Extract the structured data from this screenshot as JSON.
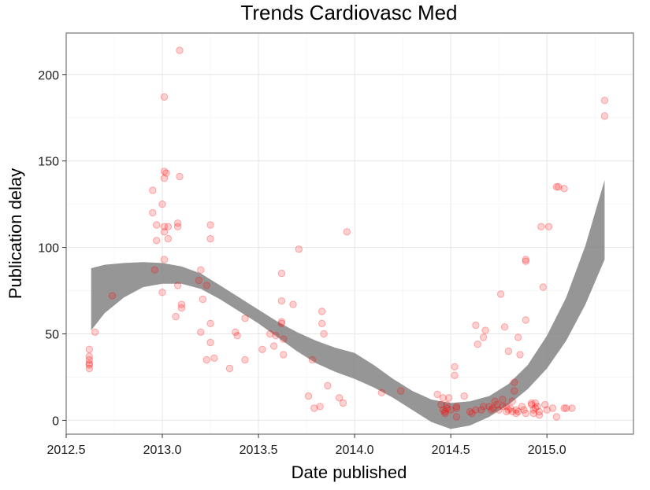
{
  "chart_data": {
    "type": "scatter",
    "title": "Trends Cardiovasc Med",
    "xlabel": "Date published",
    "ylabel": "Publication delay",
    "xlim": [
      2012.5,
      2015.45
    ],
    "ylim": [
      -8,
      224
    ],
    "x_ticks": [
      2012.5,
      2013.0,
      2013.5,
      2014.0,
      2014.5,
      2015.0
    ],
    "x_tick_labels": [
      "2012.5",
      "2013.0",
      "2013.5",
      "2014.0",
      "2014.5",
      "2015.0"
    ],
    "y_ticks": [
      0,
      50,
      100,
      150,
      200
    ],
    "y_tick_labels": [
      "0",
      "50",
      "100",
      "150",
      "200"
    ],
    "grid": true,
    "point_color": "#ff0000",
    "ribbon_color": "#7f7f7f",
    "points": [
      [
        2012.62,
        41
      ],
      [
        2012.62,
        37
      ],
      [
        2012.62,
        35
      ],
      [
        2012.62,
        33
      ],
      [
        2012.62,
        32
      ],
      [
        2012.62,
        30
      ],
      [
        2012.65,
        51
      ],
      [
        2012.74,
        72
      ],
      [
        2012.95,
        133
      ],
      [
        2012.95,
        120
      ],
      [
        2012.96,
        87
      ],
      [
        2012.97,
        113
      ],
      [
        2012.97,
        104
      ],
      [
        2013.0,
        125
      ],
      [
        2013.0,
        74
      ],
      [
        2013.01,
        187
      ],
      [
        2013.01,
        144
      ],
      [
        2013.01,
        140
      ],
      [
        2013.01,
        112
      ],
      [
        2013.01,
        109
      ],
      [
        2013.01,
        93
      ],
      [
        2013.02,
        143
      ],
      [
        2013.03,
        112
      ],
      [
        2013.03,
        105
      ],
      [
        2013.07,
        60
      ],
      [
        2013.08,
        114
      ],
      [
        2013.08,
        112
      ],
      [
        2013.08,
        78
      ],
      [
        2013.09,
        214
      ],
      [
        2013.09,
        141
      ],
      [
        2013.1,
        67
      ],
      [
        2013.1,
        65
      ],
      [
        2013.19,
        81
      ],
      [
        2013.2,
        87
      ],
      [
        2013.2,
        51
      ],
      [
        2013.21,
        70
      ],
      [
        2013.23,
        78
      ],
      [
        2013.23,
        35
      ],
      [
        2013.25,
        113
      ],
      [
        2013.25,
        105
      ],
      [
        2013.25,
        56
      ],
      [
        2013.25,
        45
      ],
      [
        2013.27,
        36
      ],
      [
        2013.35,
        30
      ],
      [
        2013.38,
        51
      ],
      [
        2013.39,
        49
      ],
      [
        2013.43,
        59
      ],
      [
        2013.43,
        35
      ],
      [
        2013.52,
        41
      ],
      [
        2013.56,
        50
      ],
      [
        2013.58,
        43
      ],
      [
        2013.59,
        49
      ],
      [
        2013.62,
        85
      ],
      [
        2013.62,
        69
      ],
      [
        2013.62,
        57
      ],
      [
        2013.62,
        56
      ],
      [
        2013.63,
        47
      ],
      [
        2013.63,
        38
      ],
      [
        2013.68,
        67
      ],
      [
        2013.71,
        99
      ],
      [
        2013.76,
        14
      ],
      [
        2013.78,
        35
      ],
      [
        2013.79,
        7
      ],
      [
        2013.82,
        8
      ],
      [
        2013.83,
        63
      ],
      [
        2013.83,
        56
      ],
      [
        2013.84,
        50
      ],
      [
        2013.86,
        20
      ],
      [
        2013.92,
        13
      ],
      [
        2013.94,
        10
      ],
      [
        2013.96,
        109
      ],
      [
        2014.14,
        16
      ],
      [
        2014.24,
        17
      ],
      [
        2014.43,
        15
      ],
      [
        2014.45,
        9
      ],
      [
        2014.46,
        13
      ],
      [
        2014.46,
        6
      ],
      [
        2014.47,
        5
      ],
      [
        2014.47,
        4
      ],
      [
        2014.48,
        9
      ],
      [
        2014.48,
        7
      ],
      [
        2014.49,
        13
      ],
      [
        2014.5,
        6
      ],
      [
        2014.52,
        31
      ],
      [
        2014.52,
        26
      ],
      [
        2014.53,
        8
      ],
      [
        2014.53,
        7
      ],
      [
        2014.53,
        2
      ],
      [
        2014.57,
        14
      ],
      [
        2014.6,
        5
      ],
      [
        2014.61,
        4
      ],
      [
        2014.63,
        6
      ],
      [
        2014.63,
        55
      ],
      [
        2014.64,
        44
      ],
      [
        2014.66,
        6
      ],
      [
        2014.67,
        8
      ],
      [
        2014.67,
        48
      ],
      [
        2014.68,
        52
      ],
      [
        2014.7,
        8
      ],
      [
        2014.71,
        6
      ],
      [
        2014.72,
        7
      ],
      [
        2014.73,
        11
      ],
      [
        2014.74,
        9
      ],
      [
        2014.75,
        6
      ],
      [
        2014.76,
        73
      ],
      [
        2014.77,
        12
      ],
      [
        2014.77,
        8
      ],
      [
        2014.78,
        54
      ],
      [
        2014.79,
        8
      ],
      [
        2014.79,
        5
      ],
      [
        2014.8,
        6
      ],
      [
        2014.8,
        40
      ],
      [
        2014.81,
        7
      ],
      [
        2014.82,
        5
      ],
      [
        2014.82,
        11
      ],
      [
        2014.83,
        22
      ],
      [
        2014.83,
        17
      ],
      [
        2014.84,
        4
      ],
      [
        2014.84,
        6
      ],
      [
        2014.85,
        5
      ],
      [
        2014.85,
        48
      ],
      [
        2014.86,
        38
      ],
      [
        2014.87,
        8
      ],
      [
        2014.88,
        6
      ],
      [
        2014.89,
        4
      ],
      [
        2014.89,
        58
      ],
      [
        2014.89,
        93
      ],
      [
        2014.89,
        92
      ],
      [
        2014.92,
        10
      ],
      [
        2014.92,
        9
      ],
      [
        2014.93,
        6
      ],
      [
        2014.93,
        4
      ],
      [
        2014.94,
        7
      ],
      [
        2014.94,
        10
      ],
      [
        2014.95,
        8
      ],
      [
        2014.96,
        3
      ],
      [
        2014.96,
        5
      ],
      [
        2014.97,
        112
      ],
      [
        2014.98,
        77
      ],
      [
        2014.99,
        9
      ],
      [
        2015.0,
        6
      ],
      [
        2015.01,
        112
      ],
      [
        2015.03,
        7
      ],
      [
        2015.05,
        135
      ],
      [
        2015.05,
        2
      ],
      [
        2015.06,
        135
      ],
      [
        2015.09,
        134
      ],
      [
        2015.09,
        7
      ],
      [
        2015.1,
        7
      ],
      [
        2015.13,
        7
      ],
      [
        2015.3,
        185
      ],
      [
        2015.3,
        176
      ]
    ],
    "smooth_ribbon": [
      [
        2012.63,
        52,
        88
      ],
      [
        2012.7,
        62,
        90
      ],
      [
        2012.8,
        71,
        91
      ],
      [
        2012.9,
        77,
        91.5
      ],
      [
        2013.0,
        79,
        91
      ],
      [
        2013.1,
        79,
        89
      ],
      [
        2013.2,
        76,
        85
      ],
      [
        2013.3,
        70,
        78
      ],
      [
        2013.4,
        63,
        71
      ],
      [
        2013.5,
        56,
        64
      ],
      [
        2013.6,
        48,
        57
      ],
      [
        2013.7,
        40,
        51
      ],
      [
        2013.8,
        33,
        46
      ],
      [
        2013.9,
        28,
        42
      ],
      [
        2014.0,
        24,
        39
      ],
      [
        2014.1,
        19,
        32
      ],
      [
        2014.2,
        13,
        24
      ],
      [
        2014.3,
        6,
        17
      ],
      [
        2014.4,
        -1,
        12
      ],
      [
        2014.5,
        -5,
        10
      ],
      [
        2014.6,
        -3,
        11
      ],
      [
        2014.7,
        2,
        14
      ],
      [
        2014.8,
        9,
        21
      ],
      [
        2014.9,
        18,
        32
      ],
      [
        2015.0,
        30,
        49
      ],
      [
        2015.1,
        46,
        71
      ],
      [
        2015.2,
        67,
        101
      ],
      [
        2015.3,
        93,
        139
      ]
    ]
  }
}
